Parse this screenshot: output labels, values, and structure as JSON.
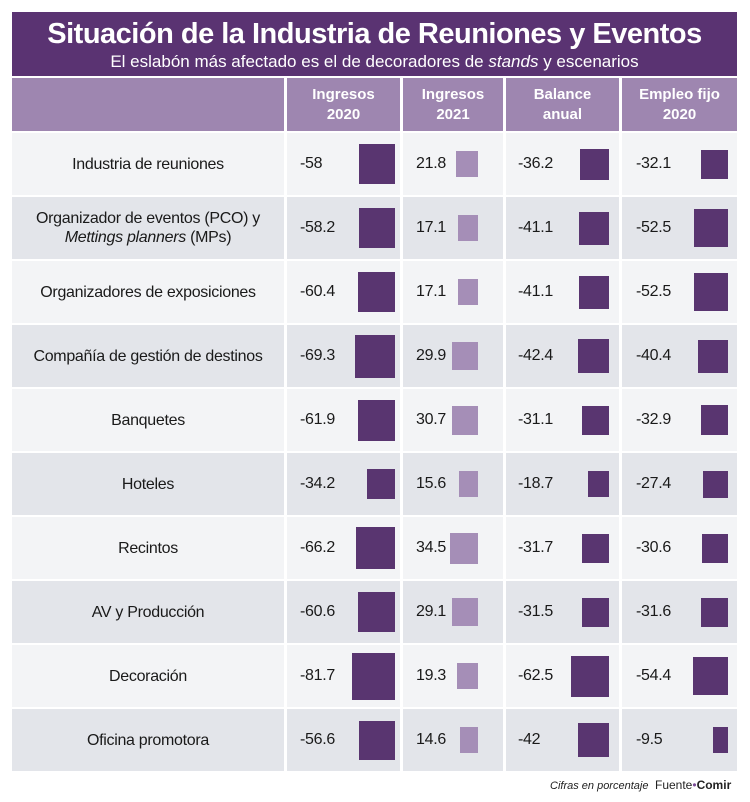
{
  "header": {
    "title": "Situación de la Industria de Reuniones y Eventos",
    "subtitle_pre": "El eslabón más afectado es el de decoradores de ",
    "subtitle_em": "stands",
    "subtitle_post": " y escenarios"
  },
  "columns": [
    {
      "line1": "Ingresos",
      "line2": "2020"
    },
    {
      "line1": "Ingresos",
      "line2": "2021"
    },
    {
      "line1": "Balance",
      "line2": "anual"
    },
    {
      "line1": "Empleo fijo",
      "line2": "2020"
    }
  ],
  "rows": [
    {
      "label_pre": "Industria de reuniones",
      "label_em": "",
      "label_post": ""
    },
    {
      "label_pre": "Organizador de eventos (PCO) y ",
      "label_em": "Mettings planners",
      "label_post": " (MPs)"
    },
    {
      "label_pre": "Organizadores de exposiciones",
      "label_em": "",
      "label_post": ""
    },
    {
      "label_pre": "Compañía de gestión de destinos",
      "label_em": "",
      "label_post": ""
    },
    {
      "label_pre": "Banquetes",
      "label_em": "",
      "label_post": ""
    },
    {
      "label_pre": "Hoteles",
      "label_em": "",
      "label_post": ""
    },
    {
      "label_pre": "Recintos",
      "label_em": "",
      "label_post": ""
    },
    {
      "label_pre": "AV y Producción",
      "label_em": "",
      "label_post": ""
    },
    {
      "label_pre": "Decoración",
      "label_em": "",
      "label_post": ""
    },
    {
      "label_pre": "Oficina promotora",
      "label_em": "",
      "label_post": ""
    }
  ],
  "footer": {
    "note": "Cifras en porcentaje",
    "source_label": "Fuente",
    "source_dot": "•",
    "source_name": "Comir"
  },
  "colors": {
    "header": "#5a3372",
    "colhead": "#9e86b0",
    "bar_dark": "#593570",
    "bar_light": "#a58eb7"
  },
  "chart_data": {
    "type": "table",
    "title": "Situación de la Industria de Reuniones y Eventos",
    "subtitle": "El eslabón más afectado es el de decoradores de stands y escenarios",
    "categories": [
      "Industria de reuniones",
      "Organizador de eventos (PCO) y Mettings planners (MPs)",
      "Organizadores de exposiciones",
      "Compañía de gestión de destinos",
      "Banquetes",
      "Hoteles",
      "Recintos",
      "AV y Producción",
      "Decoración",
      "Oficina promotora"
    ],
    "series": [
      {
        "name": "Ingresos 2020",
        "values": [
          "-58",
          "-58.2",
          "-60.4",
          "-69.3",
          "-61.9",
          "-34.2",
          "-66.2",
          "-60.6",
          "-81.7",
          "-56.6"
        ]
      },
      {
        "name": "Ingresos 2021",
        "values": [
          "21.8",
          "17.1",
          "17.1",
          "29.9",
          "30.7",
          "15.6",
          "34.5",
          "29.1",
          "19.3",
          "14.6"
        ]
      },
      {
        "name": "Balance anual",
        "values": [
          "-36.2",
          "-41.1",
          "-41.1",
          "-42.4",
          "-31.1",
          "-18.7",
          "-31.7",
          "-31.5",
          "-62.5",
          "-42"
        ]
      },
      {
        "name": "Empleo fijo 2020",
        "values": [
          "-32.1",
          "-52.5",
          "-52.5",
          "-40.4",
          "-32.9",
          "-27.4",
          "-30.6",
          "-31.6",
          "-54.4",
          "-9.5"
        ]
      }
    ],
    "unit": "Cifras en porcentaje"
  }
}
